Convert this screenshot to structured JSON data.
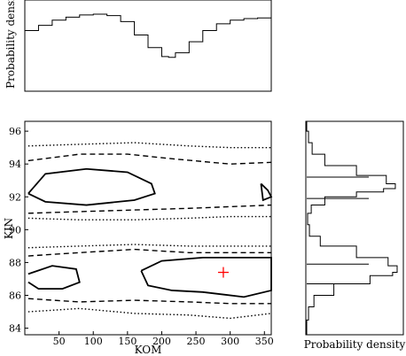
{
  "chart_data": [
    {
      "type": "histogram",
      "panel": "top-marginal",
      "xlabel": "",
      "ylabel": "Probability density",
      "xlim": [
        0,
        360
      ],
      "series": [
        {
          "x": [
            0,
            20,
            40,
            60,
            80,
            100,
            120,
            140,
            160,
            180,
            200,
            210,
            220,
            240,
            260,
            280,
            300,
            320,
            340,
            360
          ],
          "y": [
            0.78,
            0.85,
            0.92,
            0.96,
            0.99,
            1.0,
            0.98,
            0.9,
            0.72,
            0.55,
            0.43,
            0.42,
            0.48,
            0.63,
            0.78,
            0.87,
            0.92,
            0.94,
            0.95,
            0.95
          ]
        }
      ]
    },
    {
      "type": "contour",
      "panel": "joint",
      "xlabel": "KOM",
      "ylabel": "KIN",
      "xlim": [
        0,
        360
      ],
      "ylim": [
        83.6,
        96.6
      ],
      "xticks": [
        "50",
        "100",
        "150",
        "200",
        "250",
        "300",
        "350"
      ],
      "yticks": [
        "84",
        "86",
        "88",
        "90",
        "92",
        "94",
        "96"
      ],
      "marker": {
        "x": 290,
        "y": 87.4,
        "symbol": "+",
        "color": "#ff0000"
      },
      "contours": [
        {
          "level": "inner",
          "style": "solid",
          "paths": [
            [
              [
                5,
                92.2
              ],
              [
                30,
                93.4
              ],
              [
                90,
                93.7
              ],
              [
                150,
                93.5
              ],
              [
                185,
                92.8
              ],
              [
                190,
                92.2
              ],
              [
                160,
                91.8
              ],
              [
                90,
                91.5
              ],
              [
                30,
                91.7
              ],
              [
                5,
                92.2
              ]
            ],
            [
              [
                345,
                92.8
              ],
              [
                355,
                92.4
              ],
              [
                360,
                92.0
              ],
              [
                348,
                91.8
              ],
              [
                345,
                92.8
              ]
            ],
            [
              [
                5,
                87.3
              ],
              [
                40,
                87.8
              ],
              [
                75,
                87.6
              ],
              [
                80,
                86.8
              ],
              [
                55,
                86.4
              ],
              [
                20,
                86.4
              ],
              [
                5,
                86.8
              ]
            ],
            [
              [
                170,
                87.5
              ],
              [
                200,
                88.1
              ],
              [
                260,
                88.3
              ],
              [
                330,
                88.3
              ],
              [
                360,
                88.3
              ],
              [
                360,
                86.3
              ],
              [
                320,
                85.9
              ],
              [
                260,
                86.2
              ],
              [
                215,
                86.3
              ],
              [
                180,
                86.6
              ],
              [
                170,
                87.5
              ]
            ]
          ]
        },
        {
          "level": "middle",
          "style": "dashed",
          "paths": [
            [
              [
                5,
                94.2
              ],
              [
                80,
                94.6
              ],
              [
                150,
                94.6
              ],
              [
                220,
                94.3
              ],
              [
                300,
                94.0
              ],
              [
                360,
                94.1
              ]
            ],
            [
              [
                5,
                91.0
              ],
              [
                80,
                91.1
              ],
              [
                160,
                91.2
              ],
              [
                240,
                91.3
              ],
              [
                300,
                91.4
              ],
              [
                360,
                91.5
              ]
            ],
            [
              [
                5,
                88.4
              ],
              [
                80,
                88.6
              ],
              [
                160,
                88.8
              ],
              [
                240,
                88.6
              ],
              [
                300,
                88.6
              ],
              [
                360,
                88.6
              ]
            ],
            [
              [
                5,
                85.8
              ],
              [
                80,
                85.6
              ],
              [
                160,
                85.7
              ],
              [
                240,
                85.6
              ],
              [
                300,
                85.5
              ],
              [
                360,
                85.5
              ]
            ]
          ]
        },
        {
          "level": "outer",
          "style": "dotted",
          "paths": [
            [
              [
                5,
                95.1
              ],
              [
                80,
                95.2
              ],
              [
                160,
                95.3
              ],
              [
                240,
                95.1
              ],
              [
                300,
                95.0
              ],
              [
                360,
                95.0
              ]
            ],
            [
              [
                5,
                90.7
              ],
              [
                80,
                90.6
              ],
              [
                160,
                90.6
              ],
              [
                240,
                90.7
              ],
              [
                300,
                90.8
              ],
              [
                360,
                90.8
              ]
            ],
            [
              [
                5,
                88.9
              ],
              [
                80,
                89.0
              ],
              [
                160,
                89.1
              ],
              [
                240,
                89.0
              ],
              [
                300,
                89.0
              ],
              [
                360,
                89.0
              ]
            ],
            [
              [
                5,
                85.0
              ],
              [
                80,
                85.2
              ],
              [
                160,
                84.9
              ],
              [
                240,
                84.8
              ],
              [
                300,
                84.6
              ],
              [
                360,
                84.9
              ]
            ]
          ]
        }
      ]
    },
    {
      "type": "histogram",
      "panel": "right-marginal",
      "xlabel": "Probability density",
      "ylabel": "",
      "ylim": [
        83.6,
        96.6
      ],
      "series": [
        {
          "y": [
            83.6,
            84.5,
            85.3,
            86.0,
            86.7,
            87.2,
            87.4,
            87.8,
            88.3,
            89.0,
            89.6,
            90.3,
            91.0,
            91.5,
            92.0,
            92.3,
            92.5,
            92.8,
            93.3,
            93.9,
            94.6,
            95.3,
            96.0,
            96.6
          ],
          "x": [
            0.0,
            0.02,
            0.08,
            0.3,
            0.7,
            0.95,
            1.0,
            0.9,
            0.55,
            0.15,
            0.03,
            0.01,
            0.05,
            0.2,
            0.55,
            0.85,
            0.98,
            0.88,
            0.55,
            0.2,
            0.06,
            0.02,
            0.0,
            0.0
          ]
        }
      ],
      "credible_intervals": [
        {
          "low": 86.7,
          "high": 87.9
        },
        {
          "low": 91.9,
          "high": 93.2
        }
      ]
    }
  ]
}
